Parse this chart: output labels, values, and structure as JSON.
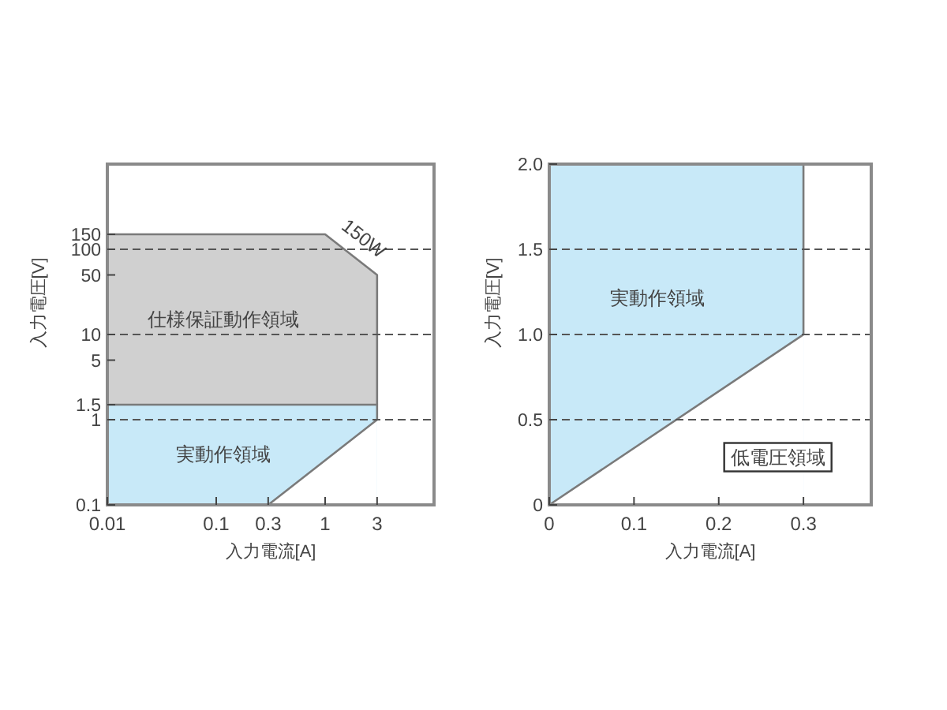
{
  "chart_data": [
    {
      "type": "area",
      "xlabel": "入力電流[A]",
      "ylabel": "入力電圧[V]",
      "log": "xy",
      "xlim": [
        0.01,
        10
      ],
      "ylim": [
        0.1,
        1000
      ],
      "xticks": [
        0.01,
        0.1,
        0.3,
        1,
        3
      ],
      "yticks": [
        0.1,
        1,
        1.5,
        5,
        10,
        50,
        100,
        150
      ],
      "series": [
        {
          "color": "#d0d0d0",
          "x": [
            0.01,
            1,
            3,
            3
          ],
          "values": [
            150,
            150,
            50,
            1.5
          ]
        },
        {
          "color": "#c8e9f8",
          "x": [
            0.01,
            3,
            3
          ],
          "values": [
            1.5,
            1.5,
            1
          ]
        },
        {
          "color": "#ffffff",
          "x": [
            0.3,
            3
          ],
          "values": [
            0.1,
            1
          ]
        }
      ],
      "ref_lines": [
        {
          "axis": "y",
          "value": 1,
          "line_style": "dashed",
          "color": "#555555"
        },
        {
          "axis": "y",
          "value": 10,
          "line_style": "dashed",
          "color": "#555555"
        },
        {
          "axis": "y",
          "value": 100,
          "line_style": "dashed",
          "color": "#555555"
        }
      ],
      "annotations": [
        "仕様保証動作領域",
        "実動作領域",
        {
          "text": "150W",
          "x": 1.732,
          "y": 86.6
        }
      ]
    },
    {
      "type": "area",
      "xlabel": "入力電流[A]",
      "ylabel": "入力電圧[V]",
      "xlim": [
        0,
        0.38
      ],
      "ylim": [
        0,
        2
      ],
      "xticks": [
        0,
        0.1,
        0.2,
        0.3
      ],
      "yticks": [
        0,
        0.5,
        {
          "value": 1,
          "label": "1.0"
        },
        1.5,
        {
          "value": 2,
          "label": "2.0"
        }
      ],
      "series": [
        {
          "color": "#c8e9f8",
          "x": [
            0,
            0.3,
            0.3
          ],
          "values": [
            2,
            2,
            1
          ]
        },
        {
          "color": "#ffffff",
          "x": [
            0,
            0.3
          ],
          "values": [
            0,
            1
          ]
        }
      ],
      "ref_lines": [
        {
          "axis": "y",
          "value": 0.5,
          "line_style": "dashed",
          "color": "#555555"
        },
        {
          "axis": "y",
          "value": 1,
          "line_style": "dashed",
          "color": "#555555"
        },
        {
          "axis": "y",
          "value": 1.5,
          "line_style": "dashed",
          "color": "#555555"
        }
      ],
      "annotations": [
        "実動作領域",
        "低電圧領域"
      ]
    }
  ]
}
